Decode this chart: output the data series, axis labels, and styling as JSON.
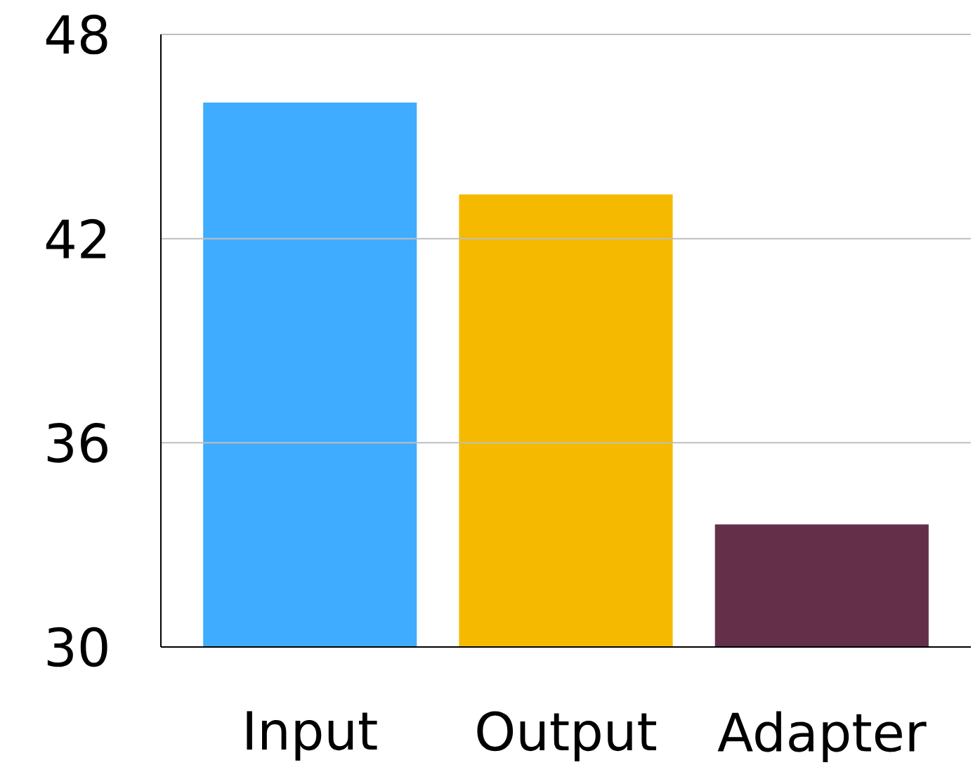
{
  "chart_data": {
    "type": "bar",
    "categories": [
      "Input",
      "Output",
      "Adapter"
    ],
    "values": [
      46.0,
      43.3,
      33.6
    ],
    "colors": [
      "#3facff",
      "#f5b900",
      "#643049"
    ],
    "ylim": [
      30,
      48
    ],
    "yticks": [
      30,
      36,
      42,
      48
    ],
    "grid": "y"
  }
}
